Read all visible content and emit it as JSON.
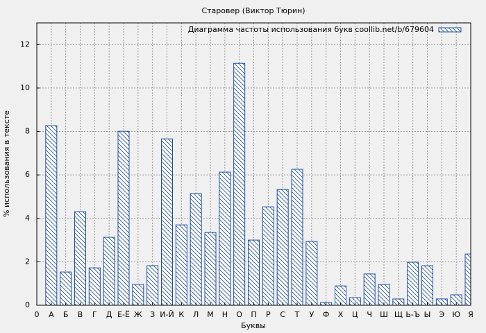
{
  "chart_data": {
    "type": "bar",
    "title": "Старовер (Виктор Тюрин)",
    "x_label": "Буквы",
    "y_label": "% использования в тексте",
    "categories": [
      "0",
      "А",
      "Б",
      "В",
      "Г",
      "Д",
      "Е-Ё",
      "Ж",
      "З",
      "И-Й",
      "К",
      "Л",
      "М",
      "Н",
      "О",
      "П",
      "Р",
      "С",
      "Т",
      "У",
      "Ф",
      "Х",
      "Ц",
      "Ч",
      "Ш",
      "Щ",
      "Ь-Ъ",
      "Ы",
      "Э",
      "Ю",
      "Я"
    ],
    "series": [
      {
        "name": "Диаграмма частоты использования букв coollib.net/b/679604",
        "color": "#1f4e9c",
        "values": [
          null,
          8.27,
          1.53,
          4.31,
          1.72,
          3.13,
          8.01,
          0.96,
          1.82,
          7.66,
          3.7,
          5.14,
          3.35,
          6.13,
          11.14,
          3.0,
          4.53,
          5.33,
          6.26,
          2.94,
          0.13,
          0.89,
          0.35,
          1.44,
          0.96,
          0.29,
          1.98,
          1.82,
          0.29,
          0.48,
          2.36
        ]
      }
    ],
    "ylim": [
      0,
      13
    ],
    "yticks": [
      0,
      2,
      4,
      6,
      8,
      10,
      12
    ],
    "grid": true,
    "legend": "upper right"
  }
}
